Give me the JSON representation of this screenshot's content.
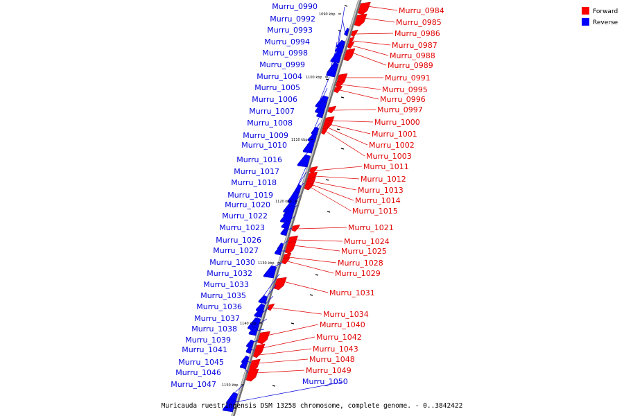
{
  "caption": "Muricauda ruestringensis DSM 13258 chromosome, complete genome. - 0..3842422",
  "legend": {
    "forward_label": "Forward",
    "reverse_label": "Reverse",
    "forward_color": "#ff0000",
    "reverse_color": "#0000ff"
  },
  "colors": {
    "forward_label": "#e00000",
    "reverse_label": "#0000dd",
    "backbone": "#9a9a9a"
  },
  "kbp_markers": [
    "1090 kbp",
    "1100 kbp",
    "1110 kbp",
    "1120 kbp",
    "1130 kbp",
    "1140 kbp",
    "1150 kbp"
  ],
  "reverse_genes": [
    "Murru_0990",
    "Murru_0992",
    "Murru_0993",
    "Murru_0994",
    "Murru_0998",
    "Murru_0999",
    "Murru_1004",
    "Murru_1005",
    "Murru_1006",
    "Murru_1007",
    "Murru_1008",
    "Murru_1009",
    "Murru_1010",
    "Murru_1016",
    "Murru_1017",
    "Murru_1018",
    "Murru_1019",
    "Murru_1020",
    "Murru_1022",
    "Murru_1023",
    "Murru_1026",
    "Murru_1027",
    "Murru_1030",
    "Murru_1032",
    "Murru_1033",
    "Murru_1035",
    "Murru_1036",
    "Murru_1037",
    "Murru_1038",
    "Murru_1039",
    "Murru_1041",
    "Murru_1045",
    "Murru_1046",
    "Murru_1047",
    "Murru_1050"
  ],
  "forward_genes": [
    "Murru_0984",
    "Murru_0985",
    "Murru_0986",
    "Murru_0987",
    "Murru_0988",
    "Murru_0989",
    "Murru_0991",
    "Murru_0995",
    "Murru_0996",
    "Murru_0997",
    "Murru_1000",
    "Murru_1001",
    "Murru_1002",
    "Murru_1003",
    "Murru_1011",
    "Murru_1012",
    "Murru_1013",
    "Murru_1014",
    "Murru_1015",
    "Murru_1021",
    "Murru_1024",
    "Murru_1025",
    "Murru_1028",
    "Murru_1029",
    "Murru_1031",
    "Murru_1034",
    "Murru_1040",
    "Murru_1042",
    "Murru_1043",
    "Murru_1048",
    "Murru_1049"
  ]
}
